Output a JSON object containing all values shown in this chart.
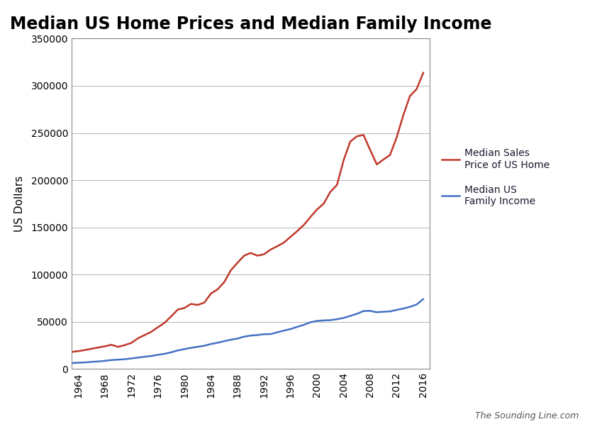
{
  "title": "Median US Home Prices and Median Family Income",
  "ylabel": "US Dollars",
  "watermark": "The Sounding Line.com",
  "ylim": [
    0,
    350000
  ],
  "yticks": [
    0,
    50000,
    100000,
    150000,
    200000,
    250000,
    300000,
    350000
  ],
  "home_price_color": "#c0392b",
  "income_color": "#4472c4",
  "legend_home": "Median Sales\nPrice of US Home",
  "legend_income": "Median US\nFamily Income",
  "home_prices": {
    "years": [
      1963,
      1964,
      1965,
      1966,
      1967,
      1968,
      1969,
      1970,
      1971,
      1972,
      1973,
      1974,
      1975,
      1976,
      1977,
      1978,
      1979,
      1980,
      1981,
      1982,
      1983,
      1984,
      1985,
      1986,
      1987,
      1988,
      1989,
      1990,
      1991,
      1992,
      1993,
      1994,
      1995,
      1996,
      1997,
      1998,
      1999,
      2000,
      2001,
      2002,
      2003,
      2004,
      2005,
      2006,
      2007,
      2008,
      2009,
      2010,
      2011,
      2012,
      2013,
      2014,
      2015,
      2016
    ],
    "values": [
      18000,
      18900,
      20000,
      21400,
      22700,
      24000,
      25600,
      23400,
      25200,
      27600,
      32500,
      35900,
      39300,
      44200,
      48800,
      55700,
      62900,
      64600,
      68900,
      67800,
      70300,
      79900,
      84300,
      92000,
      104500,
      112500,
      120000,
      122900,
      120000,
      121500,
      126500,
      130000,
      133900,
      140000,
      146000,
      152500,
      161000,
      169000,
      175200,
      187600,
      195000,
      221000,
      240900,
      246500,
      247900,
      232100,
      216700,
      221800,
      226700,
      245400,
      268900,
      289200,
      296400,
      313700
    ]
  },
  "family_income": {
    "years": [
      1963,
      1964,
      1965,
      1966,
      1967,
      1968,
      1969,
      1970,
      1971,
      1972,
      1973,
      1974,
      1975,
      1976,
      1977,
      1978,
      1979,
      1980,
      1981,
      1982,
      1983,
      1984,
      1985,
      1986,
      1987,
      1988,
      1989,
      1990,
      1991,
      1992,
      1993,
      1994,
      1995,
      1996,
      1997,
      1998,
      1999,
      2000,
      2001,
      2002,
      2003,
      2004,
      2005,
      2006,
      2007,
      2008,
      2009,
      2010,
      2011,
      2012,
      2013,
      2014,
      2015,
      2016
    ],
    "values": [
      6200,
      6600,
      6900,
      7500,
      7900,
      8600,
      9400,
      9870,
      10290,
      11100,
      12050,
      12900,
      13720,
      14960,
      16010,
      17640,
      19590,
      21020,
      22390,
      23430,
      24580,
      26430,
      27740,
      29460,
      30970,
      32190,
      34213,
      35353,
      35939,
      36812,
      36959,
      38782,
      40611,
      42300,
      44568,
      46737,
      49440,
      50891,
      51407,
      51680,
      52680,
      54061,
      56194,
      58407,
      61355,
      61521,
      60088,
      60609,
      60974,
      62527,
      64030,
      65752,
      68260,
      73891
    ]
  },
  "xticks": [
    1964,
    1968,
    1972,
    1976,
    1980,
    1984,
    1988,
    1992,
    1996,
    2000,
    2004,
    2008,
    2012,
    2016
  ],
  "xlim": [
    1963,
    2017
  ],
  "background_color": "#ffffff",
  "plot_bg_color": "#ffffff",
  "grid_color": "#aaaaaa",
  "spine_color": "#888888",
  "title_fontsize": 17,
  "axis_label_fontsize": 11,
  "tick_fontsize": 10,
  "legend_fontsize": 10,
  "watermark_fontsize": 9,
  "line_width": 1.8
}
